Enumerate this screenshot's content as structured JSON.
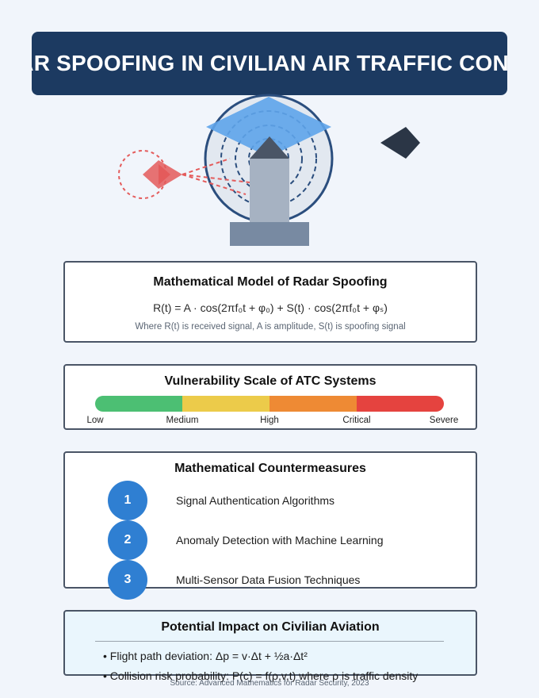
{
  "header": {
    "title": "RADAR SPOOFING IN CIVILIAN AIR TRAFFIC CONTROL"
  },
  "scene": {
    "icons": [
      "spoofing-aircraft-icon",
      "radar-dome-icon",
      "radar-tower-icon",
      "target-aircraft-icon"
    ],
    "colors": {
      "spoof": "#e45b5b",
      "radar": "#5ea4ea",
      "tower": "#a6b2c2",
      "aircraft": "#2b3646"
    }
  },
  "model": {
    "title": "Mathematical Model of Radar Spoofing",
    "formula": "R(t) = A · cos(2πf₀t + φ₀) + S(t) · cos(2πf₀t + φₛ)",
    "note": "Where R(t) is received signal, A is amplitude, S(t) is spoofing signal"
  },
  "vulnerability": {
    "title": "Vulnerability Scale of ATC Systems",
    "colors": [
      "#4cbf73",
      "#eccb4a",
      "#ee8a34",
      "#e5433f"
    ],
    "labels": [
      "Low",
      "Medium",
      "High",
      "Critical",
      "Severe"
    ]
  },
  "countermeasures": {
    "title": "Mathematical Countermeasures",
    "items": [
      {
        "number": "1",
        "label": "Signal Authentication Algorithms"
      },
      {
        "number": "2",
        "label": "Anomaly Detection with Machine Learning"
      },
      {
        "number": "3",
        "label": "Multi-Sensor Data Fusion Techniques"
      }
    ]
  },
  "impact": {
    "title": "Potential Impact on Civilian Aviation",
    "items": [
      "• Flight path deviation: Δp = v·Δt + ½a·Δt²",
      "• Collision risk probability: P(c) = f(ρ,v,t) where ρ is traffic density"
    ]
  },
  "footer": {
    "source": "Source: Advanced Mathematics for Radar Security, 2023"
  }
}
